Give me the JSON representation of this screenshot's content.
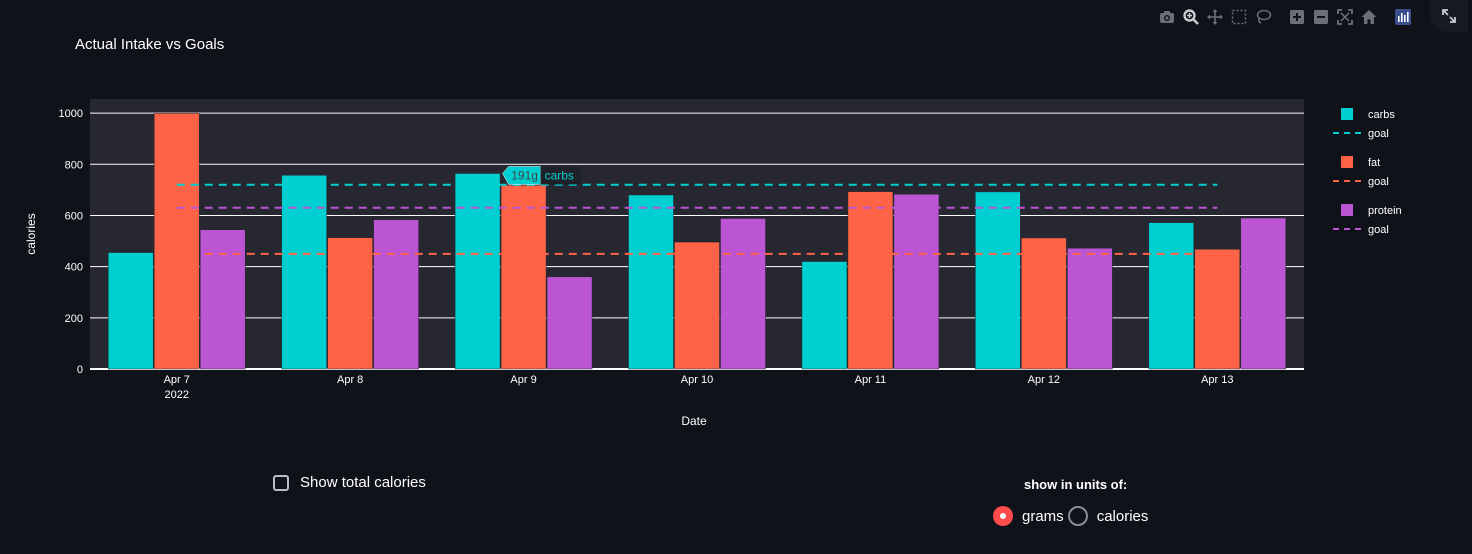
{
  "chart_data": {
    "type": "bar",
    "title": "Actual Intake vs Goals",
    "xlabel": "Date",
    "ylabel": "calories",
    "categories": [
      "Apr 7",
      "Apr 8",
      "Apr 9",
      "Apr 10",
      "Apr 11",
      "Apr 12",
      "Apr 13"
    ],
    "year_label": "2022",
    "ylim": [
      0,
      1055
    ],
    "yticks": [
      0,
      200,
      400,
      600,
      800,
      1000
    ],
    "series": [
      {
        "name": "carbs",
        "color": "#00cfd1",
        "values": [
          455,
          757,
          764,
          680,
          420,
          692,
          572
        ]
      },
      {
        "name": "fat",
        "color": "#ff6347",
        "values": [
          999,
          513,
          718,
          496,
          693,
          512,
          468
        ]
      },
      {
        "name": "protein",
        "color": "#bb55d3",
        "values": [
          544,
          583,
          360,
          588,
          683,
          472,
          590
        ]
      }
    ],
    "goals": [
      {
        "name": "goal",
        "color": "#00cfd1",
        "value": 720
      },
      {
        "name": "goal",
        "color": "#ff6347",
        "value": 450
      },
      {
        "name": "goal",
        "color": "#bb55d3",
        "value": 630
      }
    ],
    "legend_position": "right",
    "grid": true,
    "hover": {
      "category": "Apr 9",
      "series": "carbs",
      "value_label": "191g",
      "name_label": "carbs"
    }
  },
  "modebar": {
    "icons": [
      "camera-icon",
      "zoom-icon",
      "pan-icon",
      "box-select-icon",
      "lasso-icon",
      "zoom-in-icon",
      "zoom-out-icon",
      "autoscale-icon",
      "home-icon",
      "plotly-logo-icon"
    ]
  },
  "controls": {
    "show_total_label": "Show total calories",
    "show_total_checked": false,
    "units_title": "show in units of:",
    "units_options": [
      "grams",
      "calories"
    ],
    "units_selected": "grams"
  }
}
